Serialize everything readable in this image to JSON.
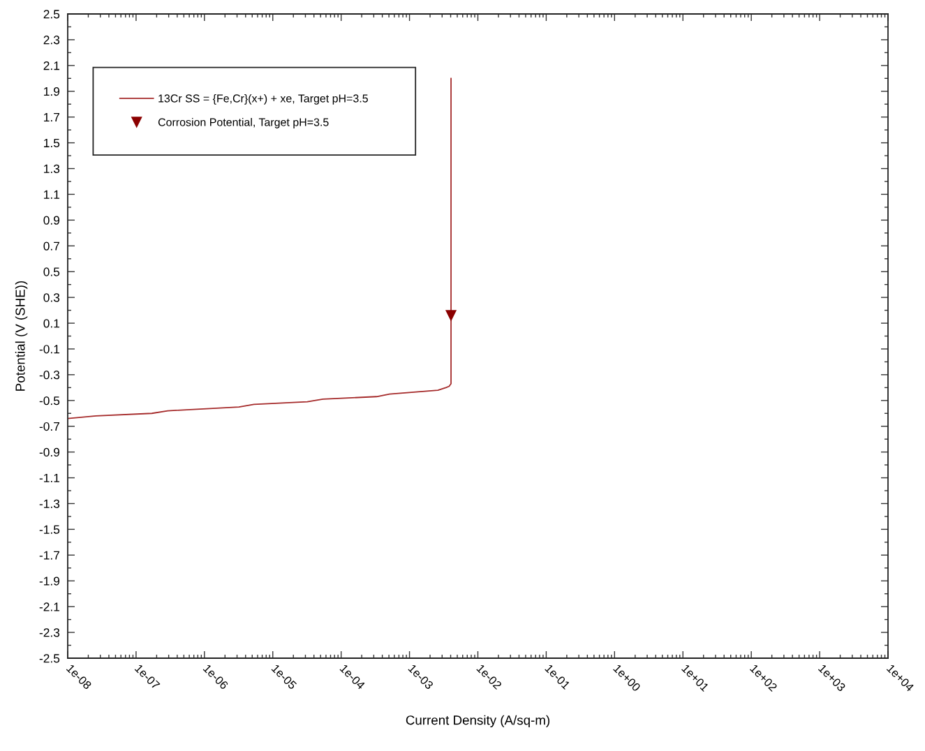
{
  "chart_data": {
    "type": "line",
    "xlabel": "Current Density (A/sq-m)",
    "ylabel": "Potential (V (SHE))",
    "log": "x",
    "xlim": [
      1e-08,
      10000
    ],
    "ylim": [
      -2.5,
      2.5
    ],
    "xticks": [
      {
        "value": 1e-08,
        "label": "1e-08"
      },
      {
        "value": 1e-07,
        "label": "1e-07"
      },
      {
        "value": 1e-06,
        "label": "1e-06"
      },
      {
        "value": 1e-05,
        "label": "1e-05"
      },
      {
        "value": 0.0001,
        "label": "1e-04"
      },
      {
        "value": 0.001,
        "label": "1e-03"
      },
      {
        "value": 0.01,
        "label": "1e-02"
      },
      {
        "value": 0.1,
        "label": "1e-01"
      },
      {
        "value": 1,
        "label": "1e+00"
      },
      {
        "value": 10,
        "label": "1e+01"
      },
      {
        "value": 100,
        "label": "1e+02"
      },
      {
        "value": 1000,
        "label": "1e+03"
      },
      {
        "value": 10000,
        "label": "1e+04"
      }
    ],
    "yticks": [
      -2.5,
      -2.3,
      -2.1,
      -1.9,
      -1.7,
      -1.5,
      -1.3,
      -1.1,
      -0.9,
      -0.7,
      -0.5,
      -0.3,
      -0.1,
      0.1,
      0.3,
      0.5,
      0.7,
      0.9,
      1.1,
      1.3,
      1.5,
      1.7,
      1.9,
      2.1,
      2.3,
      2.5
    ],
    "legend": "top left",
    "series": [
      {
        "name": "13Cr SS = {Fe,Cr}(x+) + xe, Target pH=3.5",
        "color": "#a52a2a",
        "line_style": "solid",
        "marker": "none",
        "x": [
          1e-08,
          2.6e-08,
          1.7e-07,
          2.9e-07,
          3.2e-06,
          5.3e-06,
          3.2e-05,
          5.4e-05,
          0.00033,
          0.00051,
          0.0026,
          0.0034,
          0.0038,
          0.00405,
          0.00405,
          0.00405
        ],
        "values": [
          -0.64,
          -0.62,
          -0.6,
          -0.58,
          -0.55,
          -0.53,
          -0.51,
          -0.49,
          -0.47,
          -0.45,
          -0.42,
          -0.4,
          -0.39,
          -0.37,
          -0.33,
          2.0
        ]
      },
      {
        "name": "Corrosion Potential, Target pH=3.5",
        "type": "scatter",
        "color": "#8b0000",
        "marker": "triangle",
        "x": [
          0.00405
        ],
        "values": [
          0.16
        ]
      }
    ]
  }
}
